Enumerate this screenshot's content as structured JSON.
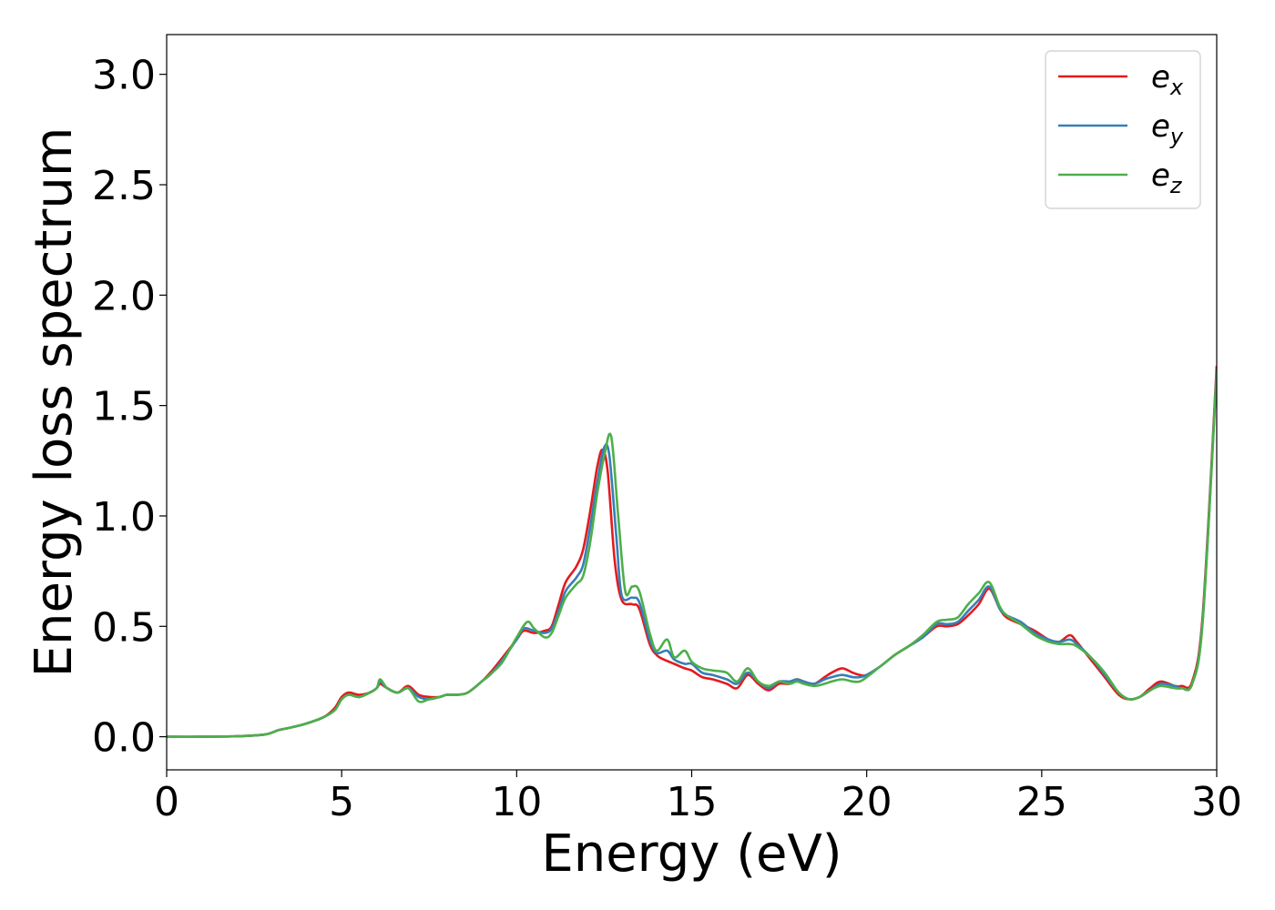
{
  "chart_data": {
    "type": "line",
    "xlabel": "Energy (eV)",
    "ylabel": "Energy loss spectrum",
    "xlim": [
      0,
      30
    ],
    "ylim": [
      -0.15,
      3.18
    ],
    "xticks": [
      0,
      5,
      10,
      15,
      20,
      25,
      30
    ],
    "xtick_labels": [
      "0",
      "5",
      "10",
      "15",
      "20",
      "25",
      "30"
    ],
    "yticks": [
      0.0,
      0.5,
      1.0,
      1.5,
      2.0,
      2.5,
      3.0
    ],
    "ytick_labels": [
      "0.0",
      "0.5",
      "1.0",
      "1.5",
      "2.0",
      "2.5",
      "3.0"
    ],
    "grid": false,
    "legend_position": "top-right",
    "series": [
      {
        "name": "e",
        "subscript": "x",
        "color": "#e41a1c",
        "x": [
          0,
          1,
          2,
          2.8,
          3.2,
          3.5,
          4,
          4.5,
          4.8,
          5,
          5.2,
          5.5,
          5.8,
          6,
          6.1,
          6.3,
          6.6,
          6.9,
          7.2,
          7.5,
          7.8,
          8,
          8.3,
          8.6,
          9,
          9.3,
          9.6,
          10,
          10.2,
          10.5,
          10.8,
          11,
          11.2,
          11.4,
          11.7,
          11.9,
          12.1,
          12.3,
          12.45,
          12.6,
          12.8,
          13,
          13.3,
          13.5,
          13.8,
          14,
          14.2,
          14.5,
          14.8,
          15,
          15.3,
          15.6,
          16,
          16.3,
          16.6,
          16.9,
          17.2,
          17.5,
          17.8,
          18,
          18.2,
          18.5,
          18.8,
          19,
          19.3,
          19.6,
          19.8,
          20,
          20.4,
          20.8,
          21.2,
          21.6,
          22,
          22.3,
          22.6,
          22.9,
          23.2,
          23.5,
          23.8,
          24,
          24.4,
          24.8,
          25.2,
          25.5,
          25.8,
          26,
          26.4,
          26.8,
          27.2,
          27.5,
          27.8,
          28.1,
          28.4,
          28.8,
          29,
          29.3,
          29.6,
          30
        ],
        "y": [
          0,
          0,
          0.002,
          0.01,
          0.03,
          0.04,
          0.06,
          0.09,
          0.13,
          0.18,
          0.2,
          0.19,
          0.2,
          0.22,
          0.24,
          0.22,
          0.2,
          0.23,
          0.19,
          0.18,
          0.18,
          0.19,
          0.19,
          0.2,
          0.25,
          0.3,
          0.36,
          0.44,
          0.48,
          0.47,
          0.48,
          0.5,
          0.6,
          0.7,
          0.77,
          0.85,
          1.02,
          1.22,
          1.3,
          1.2,
          0.8,
          0.62,
          0.6,
          0.58,
          0.42,
          0.37,
          0.35,
          0.33,
          0.31,
          0.3,
          0.27,
          0.26,
          0.24,
          0.22,
          0.28,
          0.24,
          0.21,
          0.24,
          0.24,
          0.26,
          0.25,
          0.24,
          0.27,
          0.29,
          0.31,
          0.29,
          0.28,
          0.28,
          0.32,
          0.37,
          0.41,
          0.45,
          0.5,
          0.5,
          0.51,
          0.55,
          0.6,
          0.67,
          0.58,
          0.54,
          0.51,
          0.48,
          0.44,
          0.43,
          0.46,
          0.43,
          0.35,
          0.27,
          0.19,
          0.17,
          0.18,
          0.22,
          0.25,
          0.23,
          0.23,
          0.25,
          0.55,
          1.68
        ]
      },
      {
        "name": "e",
        "subscript": "y",
        "color": "#377eb8",
        "x": [
          0,
          1,
          2,
          2.8,
          3.2,
          3.5,
          4,
          4.5,
          4.8,
          5,
          5.2,
          5.5,
          5.8,
          6,
          6.1,
          6.3,
          6.6,
          6.9,
          7.2,
          7.5,
          7.8,
          8,
          8.3,
          8.6,
          9,
          9.3,
          9.6,
          10,
          10.2,
          10.5,
          10.8,
          11,
          11.2,
          11.4,
          11.7,
          11.9,
          12.1,
          12.3,
          12.5,
          12.65,
          12.85,
          13,
          13.3,
          13.5,
          13.8,
          14,
          14.3,
          14.5,
          14.8,
          15,
          15.3,
          15.6,
          16,
          16.3,
          16.6,
          16.9,
          17.2,
          17.5,
          17.8,
          18,
          18.2,
          18.5,
          18.8,
          19,
          19.3,
          19.6,
          19.8,
          20,
          20.4,
          20.8,
          21.2,
          21.6,
          22,
          22.3,
          22.6,
          22.9,
          23.2,
          23.5,
          23.8,
          24,
          24.4,
          24.8,
          25.2,
          25.5,
          25.8,
          26,
          26.4,
          26.8,
          27.2,
          27.5,
          27.8,
          28.1,
          28.4,
          28.8,
          29,
          29.3,
          29.6,
          30
        ],
        "y": [
          0,
          0,
          0.002,
          0.01,
          0.03,
          0.04,
          0.06,
          0.09,
          0.12,
          0.17,
          0.19,
          0.18,
          0.2,
          0.22,
          0.25,
          0.22,
          0.2,
          0.22,
          0.18,
          0.17,
          0.18,
          0.19,
          0.19,
          0.2,
          0.25,
          0.29,
          0.35,
          0.44,
          0.49,
          0.48,
          0.47,
          0.49,
          0.57,
          0.66,
          0.72,
          0.78,
          0.95,
          1.15,
          1.31,
          1.27,
          0.9,
          0.64,
          0.63,
          0.61,
          0.44,
          0.38,
          0.39,
          0.35,
          0.33,
          0.33,
          0.29,
          0.28,
          0.26,
          0.24,
          0.29,
          0.25,
          0.22,
          0.25,
          0.25,
          0.26,
          0.25,
          0.24,
          0.26,
          0.27,
          0.28,
          0.27,
          0.27,
          0.28,
          0.32,
          0.37,
          0.41,
          0.45,
          0.51,
          0.51,
          0.52,
          0.57,
          0.62,
          0.68,
          0.58,
          0.55,
          0.52,
          0.47,
          0.44,
          0.43,
          0.44,
          0.42,
          0.36,
          0.28,
          0.2,
          0.17,
          0.18,
          0.21,
          0.24,
          0.23,
          0.22,
          0.24,
          0.53,
          1.66
        ]
      },
      {
        "name": "e",
        "subscript": "z",
        "color": "#4daf4a",
        "x": [
          0,
          1,
          2,
          2.8,
          3.2,
          3.5,
          4,
          4.5,
          4.8,
          5,
          5.2,
          5.5,
          5.8,
          6,
          6.1,
          6.3,
          6.6,
          6.9,
          7.2,
          7.5,
          7.8,
          8,
          8.3,
          8.6,
          9,
          9.3,
          9.6,
          10,
          10.3,
          10.5,
          10.8,
          11,
          11.2,
          11.4,
          11.7,
          11.9,
          12.1,
          12.3,
          12.5,
          12.7,
          12.9,
          13.1,
          13.3,
          13.5,
          13.8,
          14,
          14.3,
          14.5,
          14.8,
          15,
          15.3,
          15.6,
          16,
          16.3,
          16.6,
          16.9,
          17.2,
          17.5,
          17.8,
          18,
          18.2,
          18.5,
          18.8,
          19,
          19.3,
          19.6,
          19.8,
          20,
          20.4,
          20.8,
          21.2,
          21.6,
          22,
          22.3,
          22.6,
          22.9,
          23.2,
          23.5,
          23.8,
          24,
          24.4,
          24.8,
          25.2,
          25.5,
          25.8,
          26,
          26.4,
          26.8,
          27.2,
          27.5,
          27.8,
          28.1,
          28.4,
          28.8,
          29,
          29.3,
          29.6,
          30
        ],
        "y": [
          0,
          0,
          0.002,
          0.01,
          0.03,
          0.04,
          0.06,
          0.09,
          0.12,
          0.17,
          0.19,
          0.18,
          0.2,
          0.22,
          0.26,
          0.22,
          0.2,
          0.22,
          0.16,
          0.17,
          0.18,
          0.19,
          0.19,
          0.2,
          0.25,
          0.29,
          0.34,
          0.45,
          0.52,
          0.49,
          0.45,
          0.47,
          0.55,
          0.63,
          0.69,
          0.73,
          0.88,
          1.1,
          1.27,
          1.36,
          1.0,
          0.66,
          0.68,
          0.66,
          0.47,
          0.39,
          0.44,
          0.36,
          0.39,
          0.34,
          0.31,
          0.3,
          0.29,
          0.25,
          0.31,
          0.25,
          0.23,
          0.25,
          0.24,
          0.25,
          0.24,
          0.23,
          0.24,
          0.25,
          0.26,
          0.25,
          0.25,
          0.27,
          0.32,
          0.37,
          0.41,
          0.46,
          0.52,
          0.53,
          0.54,
          0.6,
          0.65,
          0.7,
          0.59,
          0.55,
          0.51,
          0.46,
          0.43,
          0.42,
          0.42,
          0.41,
          0.36,
          0.29,
          0.2,
          0.17,
          0.18,
          0.21,
          0.23,
          0.22,
          0.22,
          0.24,
          0.52,
          1.65
        ]
      }
    ]
  }
}
